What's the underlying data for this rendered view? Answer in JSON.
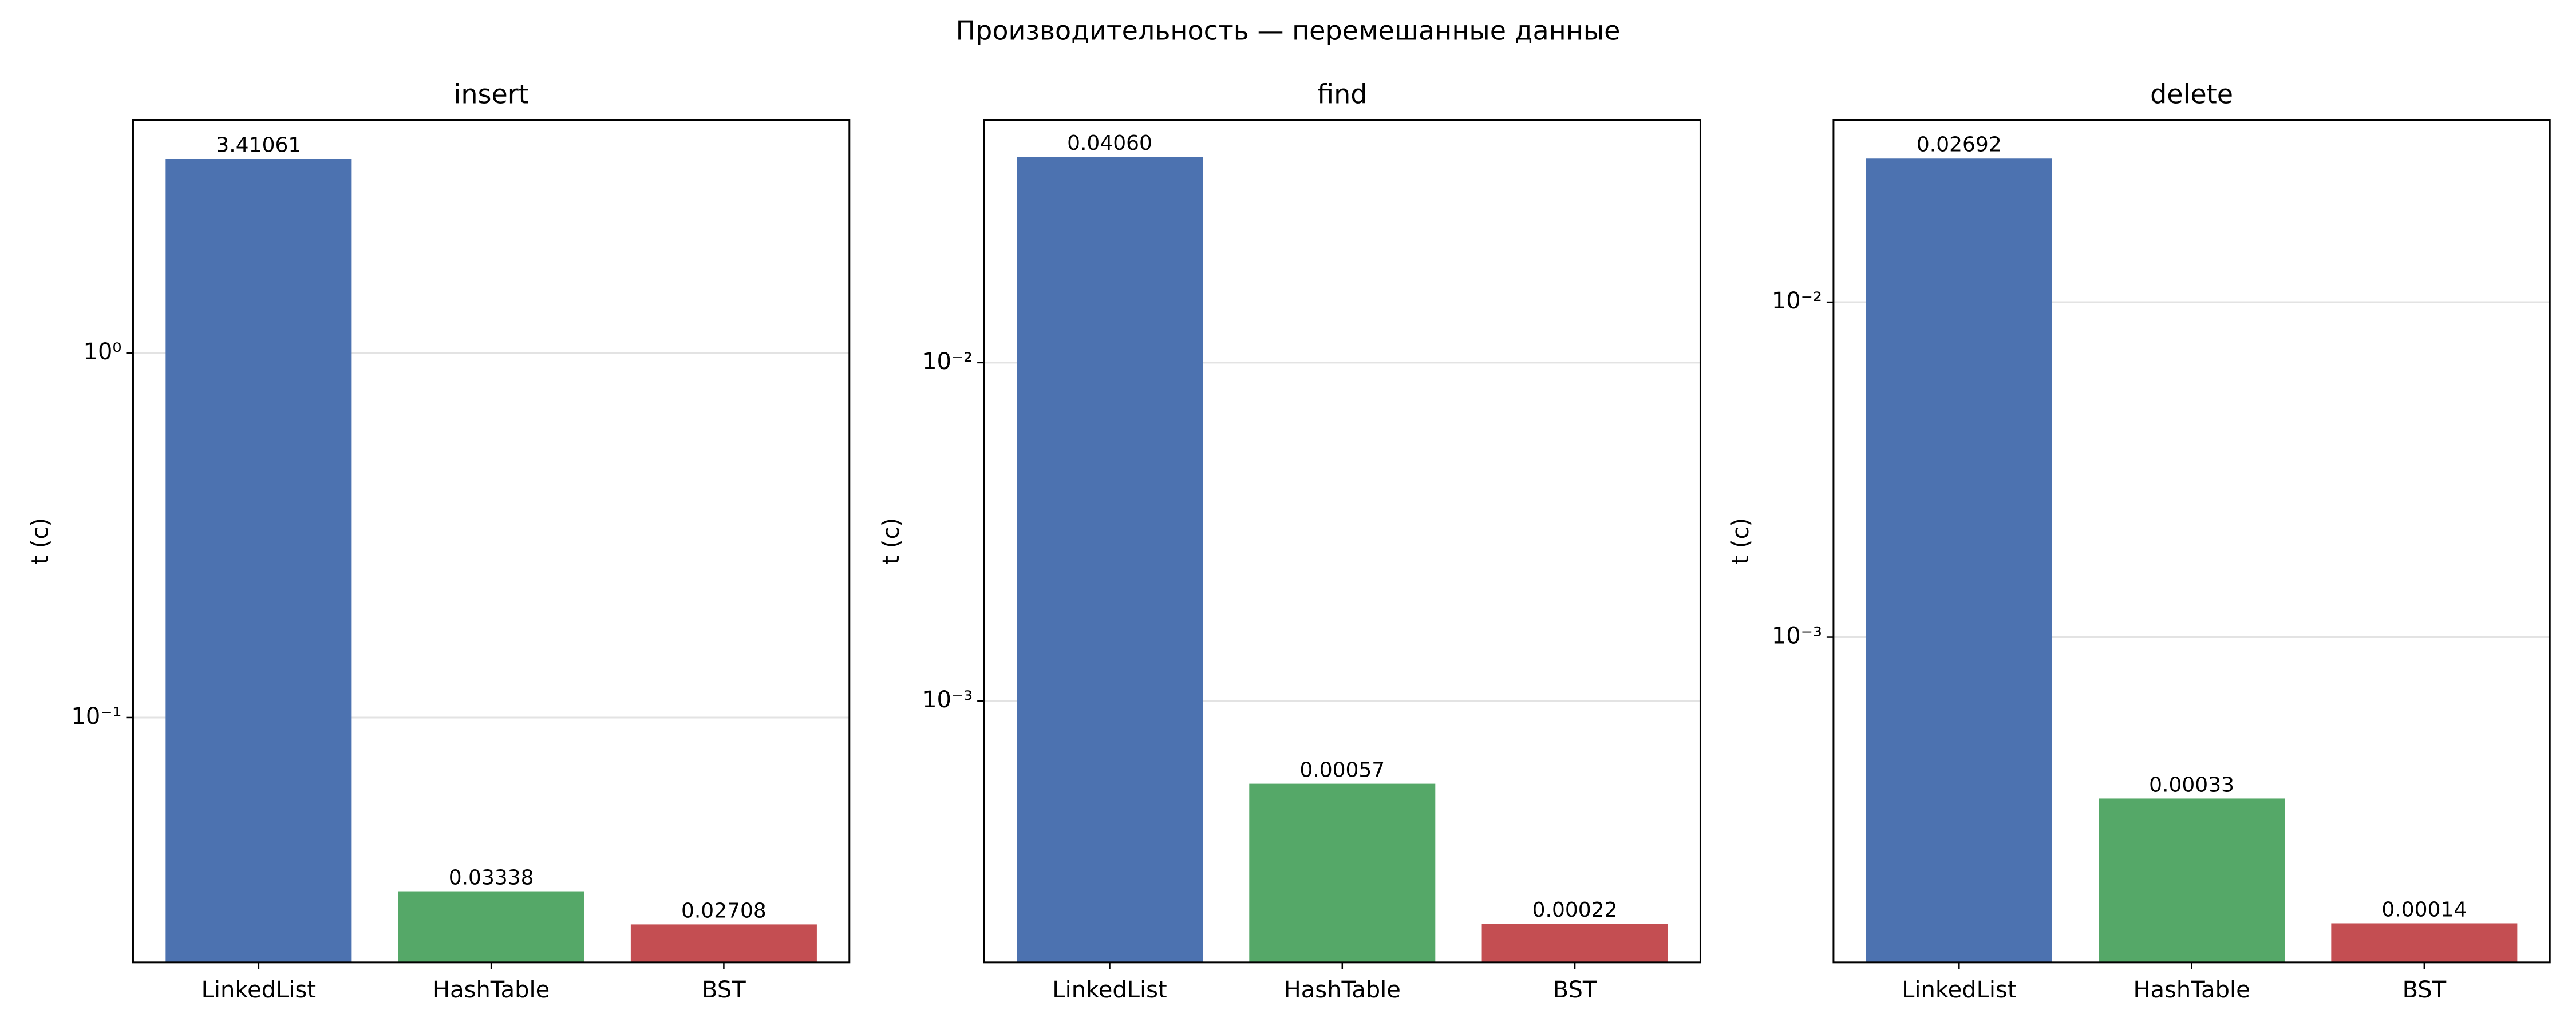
{
  "suptitle": "Производительность — перемешанные данные",
  "chart_data": [
    {
      "type": "bar",
      "title": "insert",
      "y_label": "t (с)",
      "log_scale": true,
      "grid": true,
      "categories": [
        "LinkedList",
        "HashTable",
        "BST"
      ],
      "values": [
        3.41061,
        0.03338,
        0.02708
      ],
      "value_labels": [
        "3.41061",
        "0.03338",
        "0.02708"
      ],
      "colors": [
        "#4c72b0",
        "#55a868",
        "#c44e52"
      ],
      "ylim": [
        0.0213,
        4.36
      ],
      "yticks": [
        {
          "value": 0.1,
          "label": "10⁻¹"
        },
        {
          "value": 1,
          "label": "10⁰"
        }
      ]
    },
    {
      "type": "bar",
      "title": "find",
      "y_label": "t (с)",
      "log_scale": true,
      "grid": true,
      "categories": [
        "LinkedList",
        "HashTable",
        "BST"
      ],
      "values": [
        0.0406,
        0.00057,
        0.00022
      ],
      "value_labels": [
        "0.04060",
        "0.00057",
        "0.00022"
      ],
      "colors": [
        "#4c72b0",
        "#55a868",
        "#c44e52"
      ],
      "ylim": [
        0.000169,
        0.0522
      ],
      "yticks": [
        {
          "value": 0.001,
          "label": "10⁻³"
        },
        {
          "value": 0.01,
          "label": "10⁻²"
        }
      ]
    },
    {
      "type": "bar",
      "title": "delete",
      "y_label": "t (с)",
      "log_scale": true,
      "grid": true,
      "categories": [
        "LinkedList",
        "HashTable",
        "BST"
      ],
      "values": [
        0.02692,
        0.00033,
        0.00014
      ],
      "value_labels": [
        "0.02692",
        "0.00033",
        "0.00014"
      ],
      "colors": [
        "#4c72b0",
        "#55a868",
        "#c44e52"
      ],
      "ylim": [
        0.000107,
        0.035
      ],
      "yticks": [
        {
          "value": 0.001,
          "label": "10⁻³"
        },
        {
          "value": 0.01,
          "label": "10⁻²"
        }
      ]
    }
  ]
}
